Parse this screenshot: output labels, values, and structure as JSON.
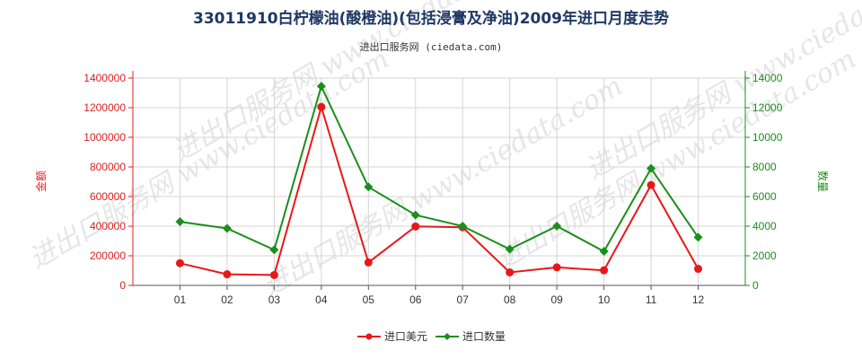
{
  "chart_data": {
    "type": "line",
    "title": "33011910白柠檬油(酸橙油)(包括浸膏及净油)2009年进口月度走势",
    "subtitle": "进出口服务网 (ciedata.com)",
    "watermark": "进出口服务网 www.ciedata.com",
    "categories": [
      "01",
      "02",
      "03",
      "04",
      "05",
      "06",
      "07",
      "08",
      "09",
      "10",
      "11",
      "12"
    ],
    "left_axis": {
      "label": "金额",
      "ylim": [
        0,
        1400000
      ],
      "ticks": [
        "0",
        "200000",
        "400000",
        "600000",
        "800000",
        "1000000",
        "1200000",
        "1400000"
      ],
      "color": "#e02020"
    },
    "right_axis": {
      "label": "数量",
      "ylim": [
        0,
        14000
      ],
      "ticks": [
        "0",
        "2000",
        "4000",
        "6000",
        "8000",
        "10000",
        "12000",
        "14000"
      ],
      "color": "#1e8c1e"
    },
    "series": [
      {
        "name": "进口美元",
        "axis": "left",
        "color": "#e81818",
        "marker": "circle",
        "values": [
          150000,
          75000,
          70000,
          1205000,
          155000,
          398000,
          393000,
          88000,
          122000,
          102000,
          678000,
          112000
        ]
      },
      {
        "name": "进口数量",
        "axis": "right",
        "color": "#1a8f1a",
        "marker": "diamond",
        "values": [
          4300,
          3850,
          2400,
          13450,
          6650,
          4750,
          4000,
          2450,
          4000,
          2300,
          7900,
          3250
        ]
      }
    ],
    "grid": true,
    "legend_position": "bottom-center"
  }
}
